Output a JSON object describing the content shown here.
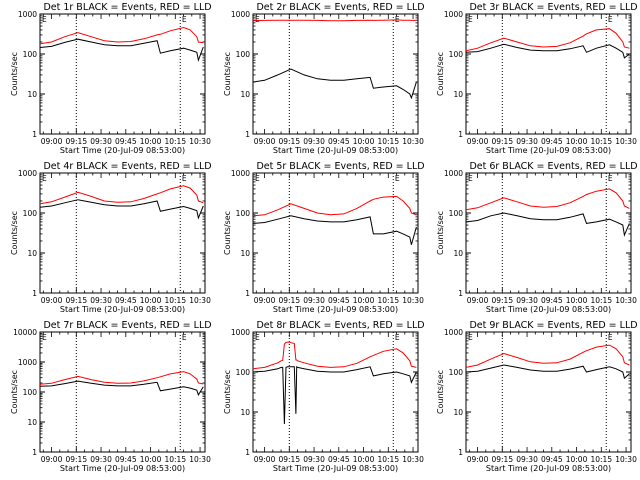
{
  "figure": {
    "x_tick_labels": [
      "09:00",
      "09:15",
      "09:30",
      "09:45",
      "10:00",
      "10:15",
      "10:30"
    ],
    "y_tick_labels_default": [
      "1",
      "10",
      "100",
      "1000"
    ],
    "y_tick_labels_panel7": [
      "1",
      "10",
      "100",
      "1000",
      "10000"
    ],
    "xlabel": "Start Time (20-Jul-09 08:53:00)",
    "ylabel": "Counts/sec",
    "marker_label": "E"
  },
  "chart_data": [
    {
      "type": "line",
      "title": "Det 1r BLACK = Events, RED = LLD",
      "x_unit": "minutes after 09:00",
      "xlim": [
        -7,
        93
      ],
      "yscale": "log",
      "ylim": [
        1,
        1000
      ],
      "x": [
        -7,
        0,
        8,
        16,
        24,
        32,
        40,
        48,
        56,
        64,
        66,
        72,
        80,
        84,
        88,
        89,
        92
      ],
      "series": [
        {
          "color": "#ff0000",
          "values": [
            180,
            200,
            270,
            340,
            270,
            215,
            200,
            205,
            240,
            300,
            310,
            380,
            460,
            400,
            270,
            200,
            190
          ]
        },
        {
          "color": "#000000",
          "values": [
            145,
            155,
            195,
            235,
            200,
            170,
            160,
            160,
            185,
            215,
            105,
            120,
            140,
            125,
            110,
            70,
            150
          ]
        }
      ],
      "vlines": [
        15,
        78
      ],
      "marker_x": 79
    },
    {
      "type": "line",
      "title": "Det 2r BLACK = Events, RED = LLD",
      "x_unit": "minutes after 09:00",
      "xlim": [
        -7,
        93
      ],
      "yscale": "log",
      "ylim": [
        1,
        1000
      ],
      "x": [
        -7,
        0,
        8,
        16,
        24,
        32,
        40,
        48,
        56,
        64,
        66,
        72,
        80,
        84,
        88,
        89,
        92
      ],
      "series": [
        {
          "color": "#ff0000",
          "values": [
            680,
            690,
            700,
            700,
            700,
            690,
            680,
            680,
            690,
            700,
            690,
            700,
            710,
            700,
            700,
            690,
            690
          ]
        },
        {
          "color": "#000000",
          "values": [
            20,
            22,
            30,
            42,
            30,
            24,
            22,
            22,
            24,
            26,
            14,
            15,
            16,
            13,
            10,
            8,
            20
          ]
        }
      ],
      "vlines": [
        15,
        78
      ],
      "marker_x": 79
    },
    {
      "type": "line",
      "title": "Det 3r BLACK = Events, RED = LLD",
      "x_unit": "minutes after 09:00",
      "xlim": [
        -7,
        93
      ],
      "yscale": "log",
      "ylim": [
        1,
        1000
      ],
      "x": [
        -7,
        0,
        8,
        16,
        24,
        32,
        40,
        48,
        56,
        64,
        66,
        72,
        80,
        84,
        88,
        89,
        92
      ],
      "series": [
        {
          "color": "#ff0000",
          "values": [
            120,
            140,
            190,
            250,
            200,
            160,
            150,
            155,
            190,
            280,
            320,
            400,
            430,
            330,
            200,
            150,
            140
          ]
        },
        {
          "color": "#000000",
          "values": [
            110,
            115,
            140,
            175,
            145,
            125,
            120,
            120,
            135,
            160,
            110,
            140,
            170,
            140,
            110,
            80,
            100
          ]
        }
      ],
      "vlines": [
        15,
        78
      ],
      "marker_x": 79
    },
    {
      "type": "line",
      "title": "Det 4r BLACK = Events, RED = LLD",
      "x_unit": "minutes after 09:00",
      "xlim": [
        -7,
        93
      ],
      "yscale": "log",
      "ylim": [
        1,
        1000
      ],
      "x": [
        -7,
        0,
        8,
        16,
        24,
        32,
        40,
        48,
        56,
        64,
        66,
        72,
        80,
        84,
        88,
        89,
        92
      ],
      "series": [
        {
          "color": "#ff0000",
          "values": [
            170,
            190,
            250,
            330,
            260,
            200,
            185,
            190,
            230,
            300,
            320,
            400,
            480,
            420,
            280,
            200,
            180
          ]
        },
        {
          "color": "#000000",
          "values": [
            140,
            150,
            180,
            215,
            185,
            160,
            150,
            150,
            170,
            200,
            110,
            125,
            145,
            130,
            115,
            75,
            150
          ]
        }
      ],
      "vlines": [
        15,
        78
      ],
      "marker_x": 79
    },
    {
      "type": "line",
      "title": "Det 5r BLACK = Events, RED = LLD",
      "x_unit": "minutes after 09:00",
      "xlim": [
        -7,
        93
      ],
      "yscale": "log",
      "ylim": [
        1,
        1000
      ],
      "x": [
        -7,
        0,
        8,
        16,
        24,
        32,
        40,
        48,
        56,
        64,
        66,
        72,
        80,
        84,
        88,
        89,
        92
      ],
      "series": [
        {
          "color": "#ff0000",
          "values": [
            85,
            90,
            120,
            170,
            130,
            100,
            90,
            95,
            130,
            200,
            220,
            250,
            260,
            200,
            130,
            100,
            90
          ]
        },
        {
          "color": "#000000",
          "values": [
            55,
            58,
            70,
            85,
            72,
            63,
            60,
            60,
            68,
            80,
            30,
            30,
            35,
            30,
            25,
            16,
            45
          ]
        }
      ],
      "vlines": [
        15,
        78
      ],
      "marker_x": 79
    },
    {
      "type": "line",
      "title": "Det 6r BLACK = Events, RED = LLD",
      "x_unit": "minutes after 09:00",
      "xlim": [
        -7,
        93
      ],
      "yscale": "log",
      "ylim": [
        1,
        1000
      ],
      "x": [
        -7,
        0,
        8,
        16,
        24,
        32,
        40,
        48,
        56,
        64,
        66,
        72,
        80,
        84,
        88,
        89,
        92
      ],
      "series": [
        {
          "color": "#ff0000",
          "values": [
            120,
            135,
            180,
            240,
            190,
            150,
            140,
            145,
            180,
            260,
            290,
            350,
            400,
            320,
            200,
            150,
            130
          ]
        },
        {
          "color": "#000000",
          "values": [
            60,
            65,
            85,
            100,
            85,
            72,
            68,
            68,
            78,
            95,
            55,
            60,
            70,
            60,
            50,
            28,
            55
          ]
        }
      ],
      "vlines": [
        15,
        78
      ],
      "marker_x": 79
    },
    {
      "type": "line",
      "title": "Det 7r BLACK = Events, RED = LLD",
      "x_unit": "minutes after 09:00",
      "xlim": [
        -7,
        93
      ],
      "yscale": "log",
      "ylim": [
        1,
        10000
      ],
      "x": [
        -7,
        0,
        8,
        16,
        24,
        32,
        40,
        48,
        56,
        64,
        66,
        72,
        80,
        84,
        88,
        89,
        92
      ],
      "series": [
        {
          "color": "#ff0000",
          "values": [
            180,
            195,
            260,
            330,
            260,
            210,
            195,
            200,
            235,
            300,
            320,
            400,
            480,
            400,
            270,
            200,
            185
          ]
        },
        {
          "color": "#000000",
          "values": [
            155,
            160,
            190,
            230,
            195,
            170,
            160,
            160,
            180,
            210,
            110,
            125,
            150,
            135,
            115,
            80,
            150
          ]
        }
      ],
      "vlines": [
        15,
        78
      ],
      "marker_x": 79
    },
    {
      "type": "line",
      "title": "Det 8r BLACK = Events, RED = LLD",
      "x_unit": "minutes after 09:00",
      "xlim": [
        -7,
        93
      ],
      "yscale": "log",
      "ylim": [
        1,
        1000
      ],
      "x": [
        -7,
        0,
        8,
        10,
        11,
        12,
        13,
        14,
        15,
        16,
        18,
        19,
        19.5,
        20,
        24,
        32,
        40,
        48,
        56,
        64,
        66,
        72,
        80,
        84,
        88,
        89,
        92
      ],
      "series": [
        {
          "color": "#ff0000",
          "values": [
            120,
            130,
            170,
            190,
            195,
            500,
            550,
            560,
            560,
            540,
            520,
            200,
            200,
            190,
            170,
            140,
            130,
            135,
            165,
            240,
            260,
            330,
            380,
            300,
            190,
            140,
            130
          ]
        },
        {
          "color": "#000000",
          "values": [
            100,
            105,
            120,
            130,
            130,
            5,
            130,
            135,
            135,
            135,
            135,
            9,
            135,
            130,
            120,
            105,
            100,
            100,
            115,
            135,
            80,
            90,
            100,
            90,
            80,
            55,
            100
          ]
        }
      ],
      "vlines": [
        15,
        78
      ],
      "marker_x": 79
    },
    {
      "type": "line",
      "title": "Det 9r BLACK = Events, RED = LLD",
      "x_unit": "minutes after 09:00",
      "xlim": [
        -7,
        93
      ],
      "yscale": "log",
      "ylim": [
        1,
        1000
      ],
      "x": [
        -7,
        0,
        8,
        16,
        24,
        32,
        40,
        48,
        56,
        64,
        66,
        72,
        80,
        84,
        88,
        89,
        92
      ],
      "series": [
        {
          "color": "#ff0000",
          "values": [
            130,
            150,
            210,
            290,
            230,
            180,
            165,
            170,
            210,
            310,
            340,
            420,
            470,
            380,
            240,
            170,
            150
          ]
        },
        {
          "color": "#000000",
          "values": [
            100,
            105,
            125,
            150,
            130,
            112,
            105,
            105,
            118,
            140,
            100,
            115,
            135,
            120,
            100,
            70,
            90
          ]
        }
      ],
      "vlines": [
        15,
        78
      ],
      "marker_x": 79
    }
  ]
}
